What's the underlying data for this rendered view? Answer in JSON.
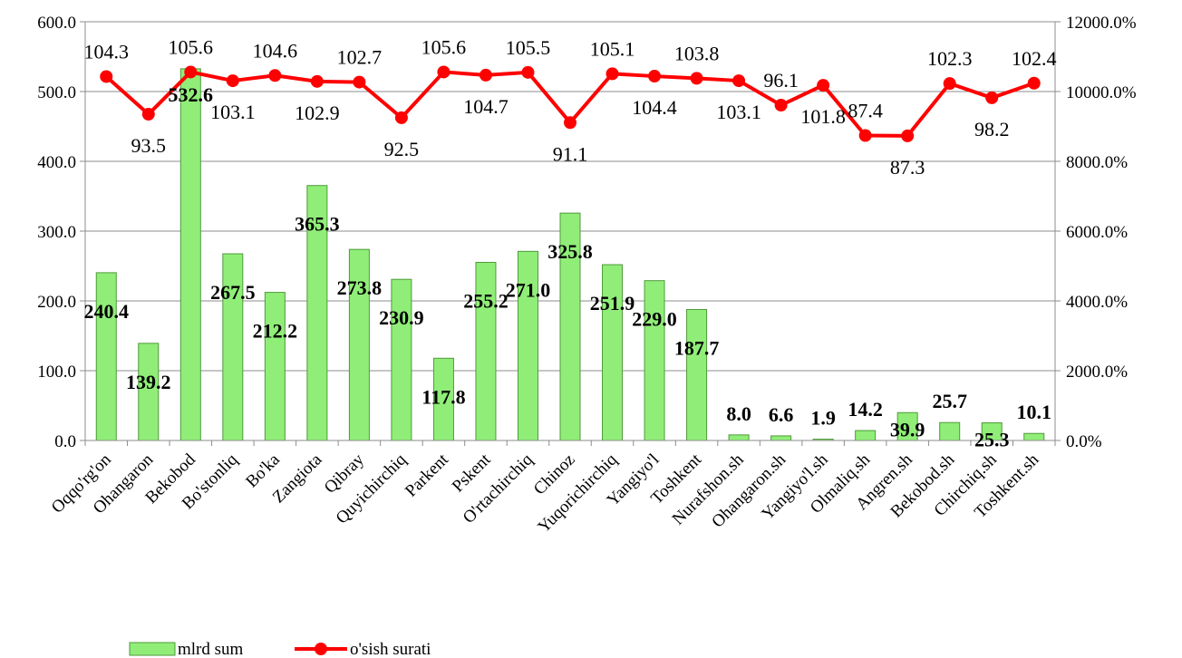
{
  "chart_data": {
    "type": "bar",
    "categories": [
      "Oqqo'rg'on",
      "Ohangaron",
      "Bekobod",
      "Bo'stonliq",
      "Bo'ka",
      "Zangiota",
      "Qibray",
      "Quyichirchiq",
      "Parkent",
      "Pskent",
      "O'rtachirchiq",
      "Chinoz",
      "Yuqorichirchiq",
      "Yangiyo'l",
      "Toshkent",
      "Nurafshon.sh",
      "Ohangaron.sh",
      "Yangiyo'l.sh",
      "Olmaliq.sh",
      "Angren.sh",
      "Bekobod.sh",
      "Chirchiq.sh",
      "Toshkent.sh"
    ],
    "series": [
      {
        "name": "mlrd sum",
        "type": "bar",
        "axis": "left",
        "color": "#90EE78",
        "values": [
          240.4,
          139.2,
          532.6,
          267.5,
          212.2,
          365.3,
          273.8,
          230.9,
          117.8,
          255.2,
          271.0,
          325.8,
          251.9,
          229.0,
          187.7,
          8.0,
          6.6,
          1.9,
          14.2,
          39.9,
          25.7,
          25.3,
          10.1
        ],
        "labels": [
          "240.4",
          "139.2",
          "532.6",
          "267.5",
          "212.2",
          "365.3",
          "273.8",
          "230.9",
          "117.8",
          "255.2",
          "271.0",
          "325.8",
          "251.9",
          "229.0",
          "187.7",
          "8.0",
          "6.6",
          "1.9",
          "14.2",
          "39.9",
          "25.7",
          "25.3",
          "10.1"
        ]
      },
      {
        "name": "o'sish surati",
        "type": "line",
        "axis": "right",
        "color": "#FF0000",
        "values": [
          104.3,
          93.5,
          105.6,
          103.1,
          104.6,
          102.9,
          102.7,
          92.5,
          105.6,
          104.7,
          105.5,
          91.1,
          105.1,
          104.4,
          103.8,
          103.1,
          96.1,
          101.8,
          87.4,
          87.3,
          102.3,
          98.2,
          102.4
        ],
        "labels": [
          "104.3",
          "93.5",
          "105.6",
          "103.1",
          "104.6",
          "102.9",
          "102.7",
          "92.5",
          "105.6",
          "104.7",
          "105.5",
          "91.1",
          "105.1",
          "104.4",
          "103.8",
          "103.1",
          "96.1",
          "101.8",
          "87.4",
          "87.3",
          "102.3",
          "98.2",
          "102.4"
        ]
      }
    ],
    "y_left": {
      "ylim": [
        0,
        600
      ],
      "ticks": [
        0,
        100,
        200,
        300,
        400,
        500,
        600
      ],
      "tick_labels": [
        "0.0",
        "100.0",
        "200.0",
        "300.0",
        "400.0",
        "500.0",
        "600.0"
      ]
    },
    "y_right": {
      "ylim": [
        0,
        12000
      ],
      "ticks": [
        0,
        2000,
        4000,
        6000,
        8000,
        10000,
        12000
      ],
      "tick_labels": [
        "0.0%",
        "2000.0%",
        "4000.0%",
        "6000.0%",
        "8000.0%",
        "10000.0%",
        "12000.0%"
      ]
    },
    "grid": true,
    "legend_position": "bottom"
  }
}
